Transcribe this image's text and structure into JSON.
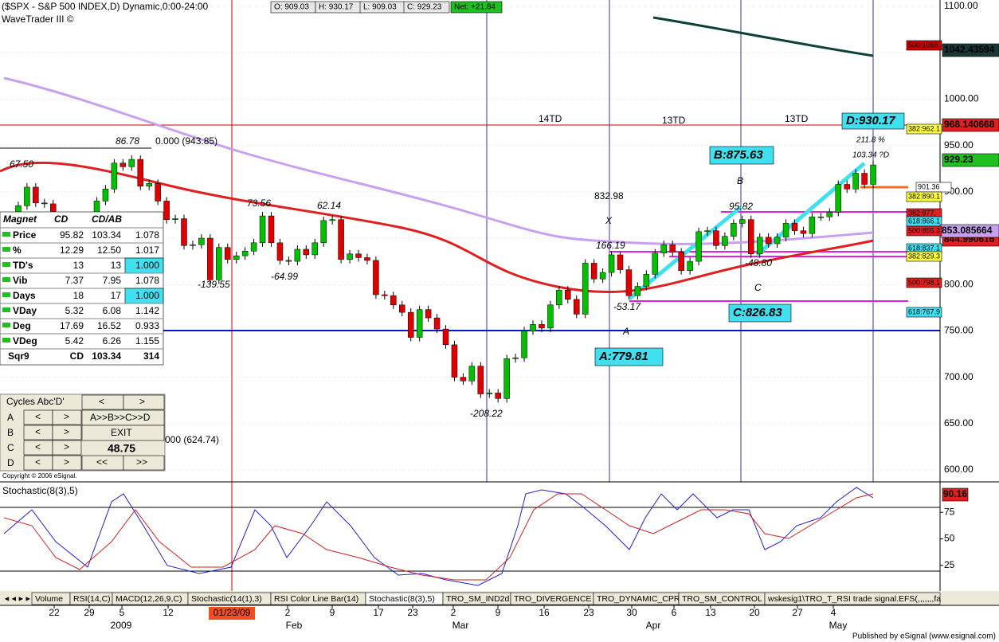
{
  "header": {
    "title": "($SPX - S&P 500 INDEX,D) Dynamic,0:00-24:00",
    "subtitle": "WaveTrader III ©",
    "quote": [
      "O: 909.03",
      "H: 930.17",
      "L: 909.03",
      "C: 929.23",
      "Net: +21.84"
    ]
  },
  "price_axis": {
    "ylim": [
      600,
      1100
    ],
    "yticks": [
      {
        "value": 600,
        "label": "600.00"
      },
      {
        "value": 650,
        "label": "650.00"
      },
      {
        "value": 700,
        "label": "700.00"
      },
      {
        "value": 750,
        "label": "750.00"
      },
      {
        "value": 800,
        "label": "800.00"
      },
      {
        "value": 850,
        "label": "850.00"
      },
      {
        "value": 900,
        "label": "900.00"
      },
      {
        "value": 950,
        "label": "950.00"
      },
      {
        "value": 1000,
        "label": "1000.00"
      },
      {
        "value": 1050,
        "label": "1050.00"
      },
      {
        "value": 1100,
        "label": "1100.00"
      }
    ]
  },
  "closes": [
    870,
    885,
    905,
    888,
    887,
    872,
    862,
    868,
    872,
    869,
    890,
    903,
    931,
    927,
    935,
    906,
    909,
    890,
    870,
    871,
    842,
    843,
    850,
    805,
    840,
    827,
    831,
    836,
    845,
    874,
    845,
    826,
    825,
    838,
    832,
    845,
    869,
    870,
    827,
    833,
    829,
    826,
    789,
    788,
    778,
    770,
    743,
    773,
    764,
    752,
    735,
    700,
    696,
    712,
    682,
    683,
    677,
    720,
    721,
    750,
    757,
    753,
    778,
    794,
    784,
    768,
    823,
    806,
    813,
    832,
    816,
    788,
    798,
    811,
    834,
    843,
    835,
    815,
    825,
    857,
    858,
    842,
    852,
    866,
    870,
    833,
    851,
    844,
    851,
    866,
    858,
    855,
    873,
    873,
    878,
    908,
    903,
    920,
    908,
    929
  ],
  "right_labels": [
    "1042.43594",
    "968.140668",
    "929.23",
    "901.36",
    "844.990616",
    "500:1059.",
    "382:962.1",
    "382:890.1",
    "382:877.",
    "618:866.1",
    "853.085664",
    "500:855.3",
    "618:837.1",
    "382:829.3",
    "500:798.1",
    "618:767.9"
  ],
  "annotations": [
    "0.000 (943.85)",
    "000 (624.74)",
    "86.78",
    "67.50",
    "73.56",
    "62.14",
    "-139.55",
    "-64.99",
    "-208.22",
    "832.98",
    "X",
    "166.19",
    "-53.17",
    "A",
    "A:779.81",
    "B:875.63",
    "B",
    "95.82",
    "-48.80",
    "C",
    "C:826.83",
    "D:930.17",
    "211.8 %",
    "103.34 ?D",
    "14TD",
    "13TD",
    "13TD"
  ],
  "table": {
    "header": [
      "Magnet",
      "CD",
      "CD/AB"
    ],
    "rows": [
      [
        "Price",
        "95.82",
        "103.34",
        "1.078"
      ],
      [
        "%",
        "12.29",
        "12.50",
        "1.017"
      ],
      [
        "TD's",
        "13",
        "13",
        "1.000"
      ],
      [
        "Vib",
        "7.37",
        "7.95",
        "1.078"
      ],
      [
        "Days",
        "18",
        "17",
        "1.000"
      ],
      [
        "VDay",
        "5.32",
        "6.08",
        "1.142"
      ],
      [
        "Deg",
        "17.69",
        "16.52",
        "0.933"
      ],
      [
        "VDeg",
        "5.42",
        "6.26",
        "1.155"
      ],
      [
        "Sqr9",
        "CD",
        "103.34",
        "314"
      ]
    ]
  },
  "cycles": {
    "title": "Cycles Abc'D'",
    "rows": [
      "A",
      "B",
      "C",
      "D"
    ],
    "left": "<",
    "right": ">",
    "sequence": "A>>B>>C>>D",
    "exit": "EXIT",
    "value": "48.75",
    "rewind": "<<",
    "forward": ">>"
  },
  "stochastic": {
    "label": "Stochastic(8(3),5)",
    "value": "90.16",
    "yticks": [
      25,
      50,
      75
    ]
  },
  "tabs": [
    "Volume",
    "RSI(14,C)",
    "MACD(12,26,9,C)",
    "Stochastic(14(1),3)",
    "RSI Color Line Bar(14)",
    "Stochastic(8(3),5)",
    "TRO_SM_IND2d",
    "TRO_DIVERGENCE",
    "TRO_DYNAMIC_CPR",
    "TRO_SM_CONTROL",
    "wskesig1\\TRO_T_RSI trade signal.EFS(,,,,,,,fa"
  ],
  "dates": {
    "days": [
      "22",
      "29",
      "5",
      "12",
      "2",
      "9",
      "17",
      "23",
      "2",
      "9",
      "16",
      "23",
      "30",
      "6",
      "13",
      "20",
      "27",
      "4"
    ],
    "months": [
      "2009",
      "Feb",
      "Mar",
      "Apr",
      "May"
    ],
    "marker": "01/23/09"
  },
  "footer": {
    "copyright": "Copyright © 2006 eSignal.",
    "published": "Published by eSignal (www.esignal.com)"
  }
}
